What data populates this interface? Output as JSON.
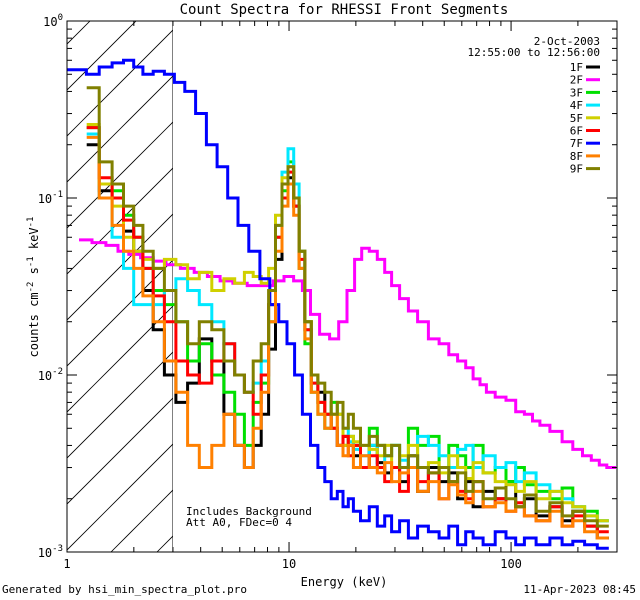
{
  "chart_data": {
    "type": "line",
    "title": "Count Spectra for RHESSI Front Segments",
    "xlabel": "Energy (keV)",
    "ylabel_parts": [
      "counts cm",
      "-2",
      " s",
      "-1",
      " keV",
      "-1"
    ],
    "xscale": "log",
    "yscale": "log",
    "xlim": [
      1,
      300
    ],
    "ylim": [
      0.001,
      1
    ],
    "x_ticks": [
      {
        "value": 1,
        "label": "1"
      },
      {
        "value": 10,
        "label": "10"
      },
      {
        "value": 100,
        "label": "100"
      }
    ],
    "y_ticks": [
      {
        "value": 1,
        "base": "10",
        "exp": "0"
      },
      {
        "value": 0.1,
        "base": "10",
        "exp": "-1"
      },
      {
        "value": 0.01,
        "base": "10",
        "exp": "-2"
      },
      {
        "value": 0.001,
        "base": "10",
        "exp": "-3"
      }
    ],
    "legend_position": "top-right",
    "legend_header": [
      "2-Oct-2003",
      "12:55:00 to 12:56:00"
    ],
    "attenuator_region_keV": [
      1,
      3
    ],
    "annotations": [
      "Includes Background",
      "Att A0, FDec=0 4"
    ],
    "series": [
      {
        "name": "1F",
        "color": "#000000",
        "x": [
          1.3,
          1.5,
          1.7,
          1.9,
          2.1,
          2.3,
          2.6,
          2.9,
          3.3,
          3.7,
          4.2,
          4.8,
          5.4,
          6.0,
          6.6,
          7.2,
          7.8,
          8.4,
          9.0,
          9.6,
          10.2,
          10.8,
          11.4,
          12.2,
          13.0,
          14,
          15,
          16,
          17,
          18,
          19,
          20,
          22,
          24,
          26,
          28,
          30,
          33,
          36,
          40,
          45,
          50,
          55,
          60,
          65,
          70,
          80,
          90,
          100,
          110,
          120,
          140,
          160,
          180,
          200,
          230,
          260
        ],
        "y": [
          0.2,
          0.11,
          0.1,
          0.065,
          0.05,
          0.03,
          0.018,
          0.01,
          0.007,
          0.009,
          0.016,
          0.012,
          0.006,
          0.004,
          0.003,
          0.004,
          0.006,
          0.014,
          0.045,
          0.1,
          0.13,
          0.09,
          0.05,
          0.02,
          0.01,
          0.008,
          0.006,
          0.005,
          0.004,
          0.0045,
          0.004,
          0.0035,
          0.003,
          0.004,
          0.0032,
          0.0028,
          0.003,
          0.0025,
          0.0035,
          0.0022,
          0.003,
          0.0025,
          0.0028,
          0.002,
          0.0025,
          0.0018,
          0.0022,
          0.002,
          0.0025,
          0.0018,
          0.002,
          0.0016,
          0.0018,
          0.0015,
          0.0017,
          0.0014,
          0.0012
        ]
      },
      {
        "name": "2F",
        "color": "#ff00ff",
        "x": [
          1.2,
          1.4,
          1.6,
          1.8,
          2.0,
          2.3,
          2.6,
          3.0,
          3.5,
          4.0,
          4.6,
          5.2,
          6.0,
          7.0,
          8.0,
          9.0,
          10.0,
          11.0,
          12.0,
          13.0,
          14.5,
          16,
          17.5,
          19,
          20.5,
          22,
          24,
          26,
          28,
          30,
          33,
          36,
          40,
          45,
          50,
          55,
          60,
          65,
          70,
          75,
          80,
          90,
          100,
          110,
          120,
          130,
          140,
          160,
          180,
          200,
          220,
          240,
          260,
          280
        ],
        "y": [
          0.058,
          0.056,
          0.054,
          0.05,
          0.048,
          0.046,
          0.044,
          0.042,
          0.04,
          0.038,
          0.036,
          0.034,
          0.033,
          0.032,
          0.032,
          0.034,
          0.036,
          0.034,
          0.03,
          0.022,
          0.017,
          0.016,
          0.02,
          0.03,
          0.045,
          0.052,
          0.05,
          0.045,
          0.038,
          0.032,
          0.027,
          0.023,
          0.02,
          0.016,
          0.015,
          0.013,
          0.012,
          0.011,
          0.0095,
          0.0088,
          0.008,
          0.0075,
          0.0072,
          0.0062,
          0.006,
          0.0055,
          0.0052,
          0.0048,
          0.0042,
          0.0038,
          0.0035,
          0.0033,
          0.0031,
          0.003
        ]
      },
      {
        "name": "3F",
        "color": "#00e000",
        "x": [
          1.3,
          1.5,
          1.7,
          1.9,
          2.1,
          2.3,
          2.6,
          2.9,
          3.3,
          3.7,
          4.2,
          4.8,
          5.4,
          6.0,
          6.6,
          7.2,
          7.8,
          8.4,
          9.0,
          9.6,
          10.2,
          10.8,
          11.4,
          12.2,
          13.0,
          14,
          15,
          16,
          17,
          18,
          19,
          20,
          22,
          24,
          26,
          28,
          30,
          33,
          36,
          40,
          45,
          50,
          55,
          60,
          65,
          70,
          80,
          90,
          100,
          110,
          120,
          140,
          160,
          180,
          200,
          230,
          260
        ],
        "y": [
          0.25,
          0.12,
          0.11,
          0.08,
          0.06,
          0.04,
          0.03,
          0.025,
          0.02,
          0.012,
          0.015,
          0.01,
          0.008,
          0.006,
          0.004,
          0.007,
          0.009,
          0.02,
          0.06,
          0.11,
          0.16,
          0.1,
          0.04,
          0.015,
          0.008,
          0.006,
          0.005,
          0.007,
          0.006,
          0.004,
          0.0045,
          0.004,
          0.003,
          0.005,
          0.004,
          0.0035,
          0.004,
          0.003,
          0.005,
          0.004,
          0.0045,
          0.003,
          0.004,
          0.0035,
          0.003,
          0.004,
          0.0028,
          0.003,
          0.0025,
          0.003,
          0.0024,
          0.0022,
          0.002,
          0.0023,
          0.0018,
          0.0017,
          0.0015
        ]
      },
      {
        "name": "4F",
        "color": "#00e8ff",
        "x": [
          1.3,
          1.5,
          1.7,
          1.9,
          2.1,
          2.3,
          2.6,
          2.9,
          3.3,
          3.7,
          4.2,
          4.8,
          5.4,
          6.0,
          6.6,
          7.2,
          7.8,
          8.4,
          9.0,
          9.6,
          10.2,
          10.8,
          11.4,
          12.2,
          13.0,
          14,
          15,
          16,
          17,
          18,
          19,
          20,
          22,
          24,
          26,
          28,
          30,
          33,
          36,
          40,
          45,
          50,
          55,
          60,
          65,
          70,
          80,
          90,
          100,
          110,
          120,
          140,
          160,
          180,
          200,
          230,
          260
        ],
        "y": [
          0.23,
          0.1,
          0.06,
          0.04,
          0.025,
          0.025,
          0.025,
          0.03,
          0.035,
          0.03,
          0.025,
          0.02,
          0.015,
          0.01,
          0.008,
          0.009,
          0.012,
          0.025,
          0.07,
          0.14,
          0.19,
          0.12,
          0.05,
          0.018,
          0.009,
          0.007,
          0.006,
          0.005,
          0.004,
          0.005,
          0.0042,
          0.0038,
          0.0035,
          0.004,
          0.003,
          0.0035,
          0.004,
          0.0033,
          0.003,
          0.0045,
          0.004,
          0.0035,
          0.003,
          0.0038,
          0.004,
          0.003,
          0.0035,
          0.003,
          0.0032,
          0.0025,
          0.0028,
          0.0024,
          0.0022,
          0.002,
          0.0018,
          0.0016,
          0.0015
        ]
      },
      {
        "name": "5F",
        "color": "#d0d000",
        "x": [
          1.3,
          1.5,
          1.7,
          1.9,
          2.1,
          2.3,
          2.6,
          2.9,
          3.3,
          3.7,
          4.2,
          4.8,
          5.4,
          6.0,
          6.6,
          7.2,
          7.8,
          8.4,
          9.0,
          9.6,
          10.2,
          10.8,
          11.4,
          12.2,
          13.0,
          14,
          15,
          16,
          17,
          18,
          19,
          20,
          22,
          24,
          26,
          28,
          30,
          33,
          36,
          40,
          45,
          50,
          55,
          60,
          65,
          70,
          80,
          90,
          100,
          110,
          120,
          140,
          160,
          180,
          200,
          230,
          260
        ],
        "y": [
          0.26,
          0.12,
          0.09,
          0.06,
          0.05,
          0.045,
          0.04,
          0.045,
          0.042,
          0.035,
          0.038,
          0.03,
          0.035,
          0.033,
          0.038,
          0.036,
          0.033,
          0.04,
          0.08,
          0.13,
          0.15,
          0.1,
          0.05,
          0.02,
          0.01,
          0.007,
          0.006,
          0.005,
          0.006,
          0.004,
          0.0045,
          0.0042,
          0.004,
          0.0038,
          0.0035,
          0.004,
          0.003,
          0.0035,
          0.004,
          0.003,
          0.0032,
          0.0028,
          0.0035,
          0.003,
          0.0026,
          0.0032,
          0.0028,
          0.0025,
          0.0024,
          0.0022,
          0.0025,
          0.002,
          0.0022,
          0.0019,
          0.0018,
          0.0016,
          0.0015
        ]
      },
      {
        "name": "6F",
        "color": "#ff0000",
        "x": [
          1.3,
          1.5,
          1.7,
          1.9,
          2.1,
          2.3,
          2.6,
          2.9,
          3.3,
          3.7,
          4.2,
          4.8,
          5.4,
          6.0,
          6.6,
          7.2,
          7.8,
          8.4,
          9.0,
          9.6,
          10.2,
          10.8,
          11.4,
          12.2,
          13.0,
          14,
          15,
          16,
          17,
          18,
          19,
          20,
          22,
          24,
          26,
          28,
          30,
          33,
          36,
          40,
          45,
          50,
          55,
          60,
          65,
          70,
          80,
          90,
          100,
          110,
          120,
          140,
          160,
          180,
          200,
          230,
          260
        ],
        "y": [
          0.25,
          0.13,
          0.1,
          0.075,
          0.06,
          0.04,
          0.028,
          0.02,
          0.012,
          0.01,
          0.009,
          0.012,
          0.015,
          0.01,
          0.008,
          0.006,
          0.01,
          0.025,
          0.06,
          0.1,
          0.14,
          0.09,
          0.045,
          0.018,
          0.009,
          0.007,
          0.006,
          0.005,
          0.004,
          0.0045,
          0.0035,
          0.004,
          0.003,
          0.0035,
          0.003,
          0.0025,
          0.003,
          0.0022,
          0.003,
          0.0025,
          0.0028,
          0.002,
          0.0025,
          0.0022,
          0.002,
          0.0025,
          0.0018,
          0.002,
          0.0017,
          0.0019,
          0.0016,
          0.0015,
          0.0018,
          0.0014,
          0.0016,
          0.0014,
          0.0013
        ]
      },
      {
        "name": "7F",
        "color": "#0000ff",
        "x": [
          1.05,
          1.15,
          1.3,
          1.5,
          1.7,
          1.9,
          2.1,
          2.3,
          2.6,
          2.9,
          3.2,
          3.6,
          4.0,
          4.5,
          5.0,
          5.6,
          6.2,
          7.0,
          7.8,
          8.6,
          9.4,
          10.2,
          11,
          12,
          13,
          14,
          15,
          16,
          17,
          18,
          19,
          20,
          22,
          24,
          26,
          28,
          30,
          33,
          36,
          40,
          45,
          50,
          55,
          60,
          65,
          70,
          80,
          90,
          100,
          110,
          120,
          140,
          160,
          180,
          200,
          230,
          260
        ],
        "y": [
          0.53,
          0.53,
          0.5,
          0.55,
          0.58,
          0.6,
          0.55,
          0.5,
          0.52,
          0.5,
          0.45,
          0.4,
          0.3,
          0.2,
          0.15,
          0.1,
          0.07,
          0.05,
          0.035,
          0.025,
          0.02,
          0.015,
          0.01,
          0.006,
          0.004,
          0.003,
          0.0025,
          0.002,
          0.0022,
          0.0018,
          0.002,
          0.0017,
          0.0015,
          0.0018,
          0.0014,
          0.0016,
          0.0013,
          0.0015,
          0.0012,
          0.0014,
          0.0013,
          0.0012,
          0.0014,
          0.0011,
          0.0013,
          0.0012,
          0.0011,
          0.0013,
          0.0012,
          0.0011,
          0.0012,
          0.0011,
          0.0012,
          0.0011,
          0.00115,
          0.0011,
          0.00105
        ]
      },
      {
        "name": "8F",
        "color": "#ff8000",
        "x": [
          1.3,
          1.5,
          1.7,
          1.9,
          2.1,
          2.3,
          2.6,
          2.9,
          3.3,
          3.7,
          4.2,
          4.8,
          5.4,
          6.0,
          6.6,
          7.2,
          7.8,
          8.4,
          9.0,
          9.6,
          10.2,
          10.8,
          11.4,
          12.2,
          13.0,
          14,
          15,
          16,
          17,
          18,
          19,
          20,
          22,
          24,
          26,
          28,
          30,
          33,
          36,
          40,
          45,
          50,
          55,
          60,
          65,
          70,
          80,
          90,
          100,
          110,
          120,
          140,
          160,
          180,
          200,
          230,
          260
        ],
        "y": [
          0.22,
          0.1,
          0.07,
          0.05,
          0.04,
          0.028,
          0.02,
          0.012,
          0.008,
          0.004,
          0.003,
          0.004,
          0.006,
          0.004,
          0.003,
          0.005,
          0.008,
          0.02,
          0.05,
          0.09,
          0.12,
          0.08,
          0.04,
          0.016,
          0.008,
          0.006,
          0.005,
          0.006,
          0.004,
          0.0035,
          0.004,
          0.003,
          0.0035,
          0.003,
          0.0028,
          0.0032,
          0.0025,
          0.0028,
          0.003,
          0.0022,
          0.0025,
          0.002,
          0.0024,
          0.0021,
          0.0019,
          0.0022,
          0.0018,
          0.0019,
          0.0017,
          0.0018,
          0.0016,
          0.0015,
          0.0017,
          0.0014,
          0.0015,
          0.0013,
          0.0012
        ]
      },
      {
        "name": "9F",
        "color": "#808000",
        "x": [
          1.3,
          1.5,
          1.7,
          1.9,
          2.1,
          2.3,
          2.6,
          2.9,
          3.3,
          3.7,
          4.2,
          4.8,
          5.4,
          6.0,
          6.6,
          7.2,
          7.8,
          8.4,
          9.0,
          9.6,
          10.2,
          10.8,
          11.4,
          12.2,
          13.0,
          14,
          15,
          16,
          17,
          18,
          19,
          20,
          22,
          24,
          26,
          28,
          30,
          33,
          36,
          40,
          45,
          50,
          55,
          60,
          65,
          70,
          80,
          90,
          100,
          110,
          120,
          140,
          160,
          180,
          200,
          230,
          260
        ],
        "y": [
          0.42,
          0.16,
          0.12,
          0.09,
          0.07,
          0.05,
          0.04,
          0.03,
          0.02,
          0.015,
          0.02,
          0.018,
          0.012,
          0.01,
          0.008,
          0.012,
          0.015,
          0.03,
          0.07,
          0.12,
          0.15,
          0.1,
          0.05,
          0.02,
          0.01,
          0.009,
          0.008,
          0.006,
          0.007,
          0.005,
          0.006,
          0.005,
          0.004,
          0.0045,
          0.004,
          0.0035,
          0.004,
          0.003,
          0.0035,
          0.003,
          0.0028,
          0.003,
          0.0025,
          0.0028,
          0.0022,
          0.0025,
          0.002,
          0.0023,
          0.002,
          0.0018,
          0.0021,
          0.0017,
          0.0019,
          0.0016,
          0.0017,
          0.0015,
          0.0014
        ]
      }
    ]
  },
  "footer": {
    "generated_by": "Generated by hsi_min_spectra_plot.pro",
    "timestamp": "11-Apr-2023 08:45"
  }
}
